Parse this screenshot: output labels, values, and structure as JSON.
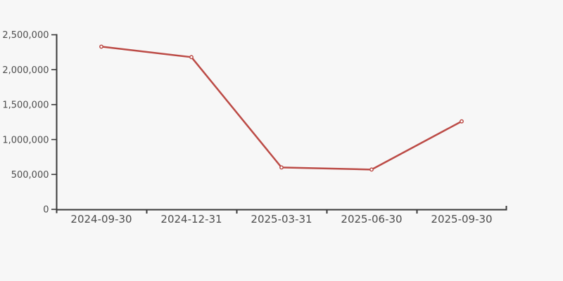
{
  "page": {
    "background_color": "#f7f7f7"
  },
  "chart_data": {
    "type": "line",
    "title": "",
    "xlabel": "",
    "ylabel": "",
    "x": [
      "2024-09-30",
      "2024-12-31",
      "2025-03-31",
      "2025-06-30",
      "2025-09-30"
    ],
    "series": [
      {
        "name": "value",
        "values": [
          2330000,
          2180000,
          600000,
          570000,
          1260000
        ],
        "color": "#bc4b46",
        "marker": "open-circle",
        "marker_fill": "#ffffff"
      }
    ],
    "ylim": [
      0,
      2500000
    ],
    "ytick_interval": 500000,
    "ytick_labels": [
      "0",
      "500,000",
      "1,000,000",
      "1,500,000",
      "2,000,000",
      "2,500,000"
    ],
    "grid": false,
    "legend": false,
    "axis_color": "#3a3a3a",
    "tick_label_color": "#4d4d4d"
  }
}
